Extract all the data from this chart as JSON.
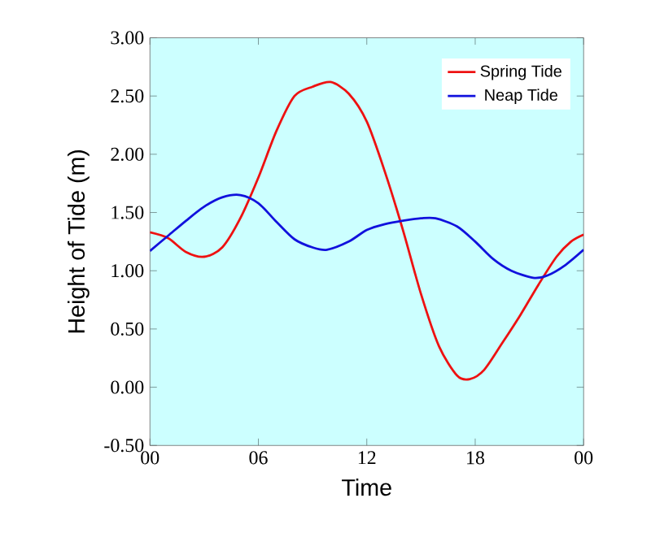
{
  "chart_data": {
    "type": "line",
    "xlabel": "Time",
    "ylabel": "Height of Tide (m)",
    "xlim": [
      0,
      24
    ],
    "ylim": [
      -0.5,
      3.0
    ],
    "xticks": [
      {
        "value": 0,
        "label": "00"
      },
      {
        "value": 6,
        "label": "06"
      },
      {
        "value": 12,
        "label": "12"
      },
      {
        "value": 18,
        "label": "18"
      },
      {
        "value": 24,
        "label": "00"
      }
    ],
    "yticks": [
      {
        "value": -0.5,
        "label": "-0.50"
      },
      {
        "value": 0,
        "label": "0.00"
      },
      {
        "value": 0.5,
        "label": "0.50"
      },
      {
        "value": 1.0,
        "label": "1.00"
      },
      {
        "value": 1.5,
        "label": "1.50"
      },
      {
        "value": 2.0,
        "label": "2.00"
      },
      {
        "value": 2.5,
        "label": "2.50"
      },
      {
        "value": 3.0,
        "label": "3.00"
      }
    ],
    "legend": "top right",
    "grid": false,
    "marker": "none",
    "line_style": "solid",
    "series": [
      {
        "name": "Spring Tide",
        "color": "#ee1111",
        "x": [
          0,
          1,
          2,
          3,
          4,
          5,
          6,
          7,
          8,
          9,
          10,
          11,
          12,
          13,
          14,
          15,
          16,
          17,
          17.7,
          18.5,
          19.5,
          20.5,
          21.5,
          22.5,
          23.3,
          24
        ],
        "values": [
          1.33,
          1.28,
          1.16,
          1.12,
          1.2,
          1.45,
          1.8,
          2.2,
          2.5,
          2.58,
          2.62,
          2.52,
          2.28,
          1.85,
          1.35,
          0.8,
          0.35,
          0.1,
          0.07,
          0.15,
          0.38,
          0.62,
          0.88,
          1.12,
          1.25,
          1.31
        ]
      },
      {
        "name": "Neap Tide",
        "color": "#1111dd",
        "x": [
          0,
          1,
          2,
          3,
          4,
          5,
          6,
          7,
          8,
          9,
          9.8,
          11,
          12,
          13,
          14,
          15,
          15.8,
          17,
          18,
          19,
          20,
          21.2,
          22,
          23,
          24
        ],
        "values": [
          1.17,
          1.3,
          1.43,
          1.55,
          1.63,
          1.65,
          1.58,
          1.42,
          1.27,
          1.2,
          1.18,
          1.25,
          1.35,
          1.4,
          1.43,
          1.45,
          1.45,
          1.38,
          1.25,
          1.1,
          1.0,
          0.94,
          0.96,
          1.05,
          1.18
        ]
      }
    ]
  }
}
